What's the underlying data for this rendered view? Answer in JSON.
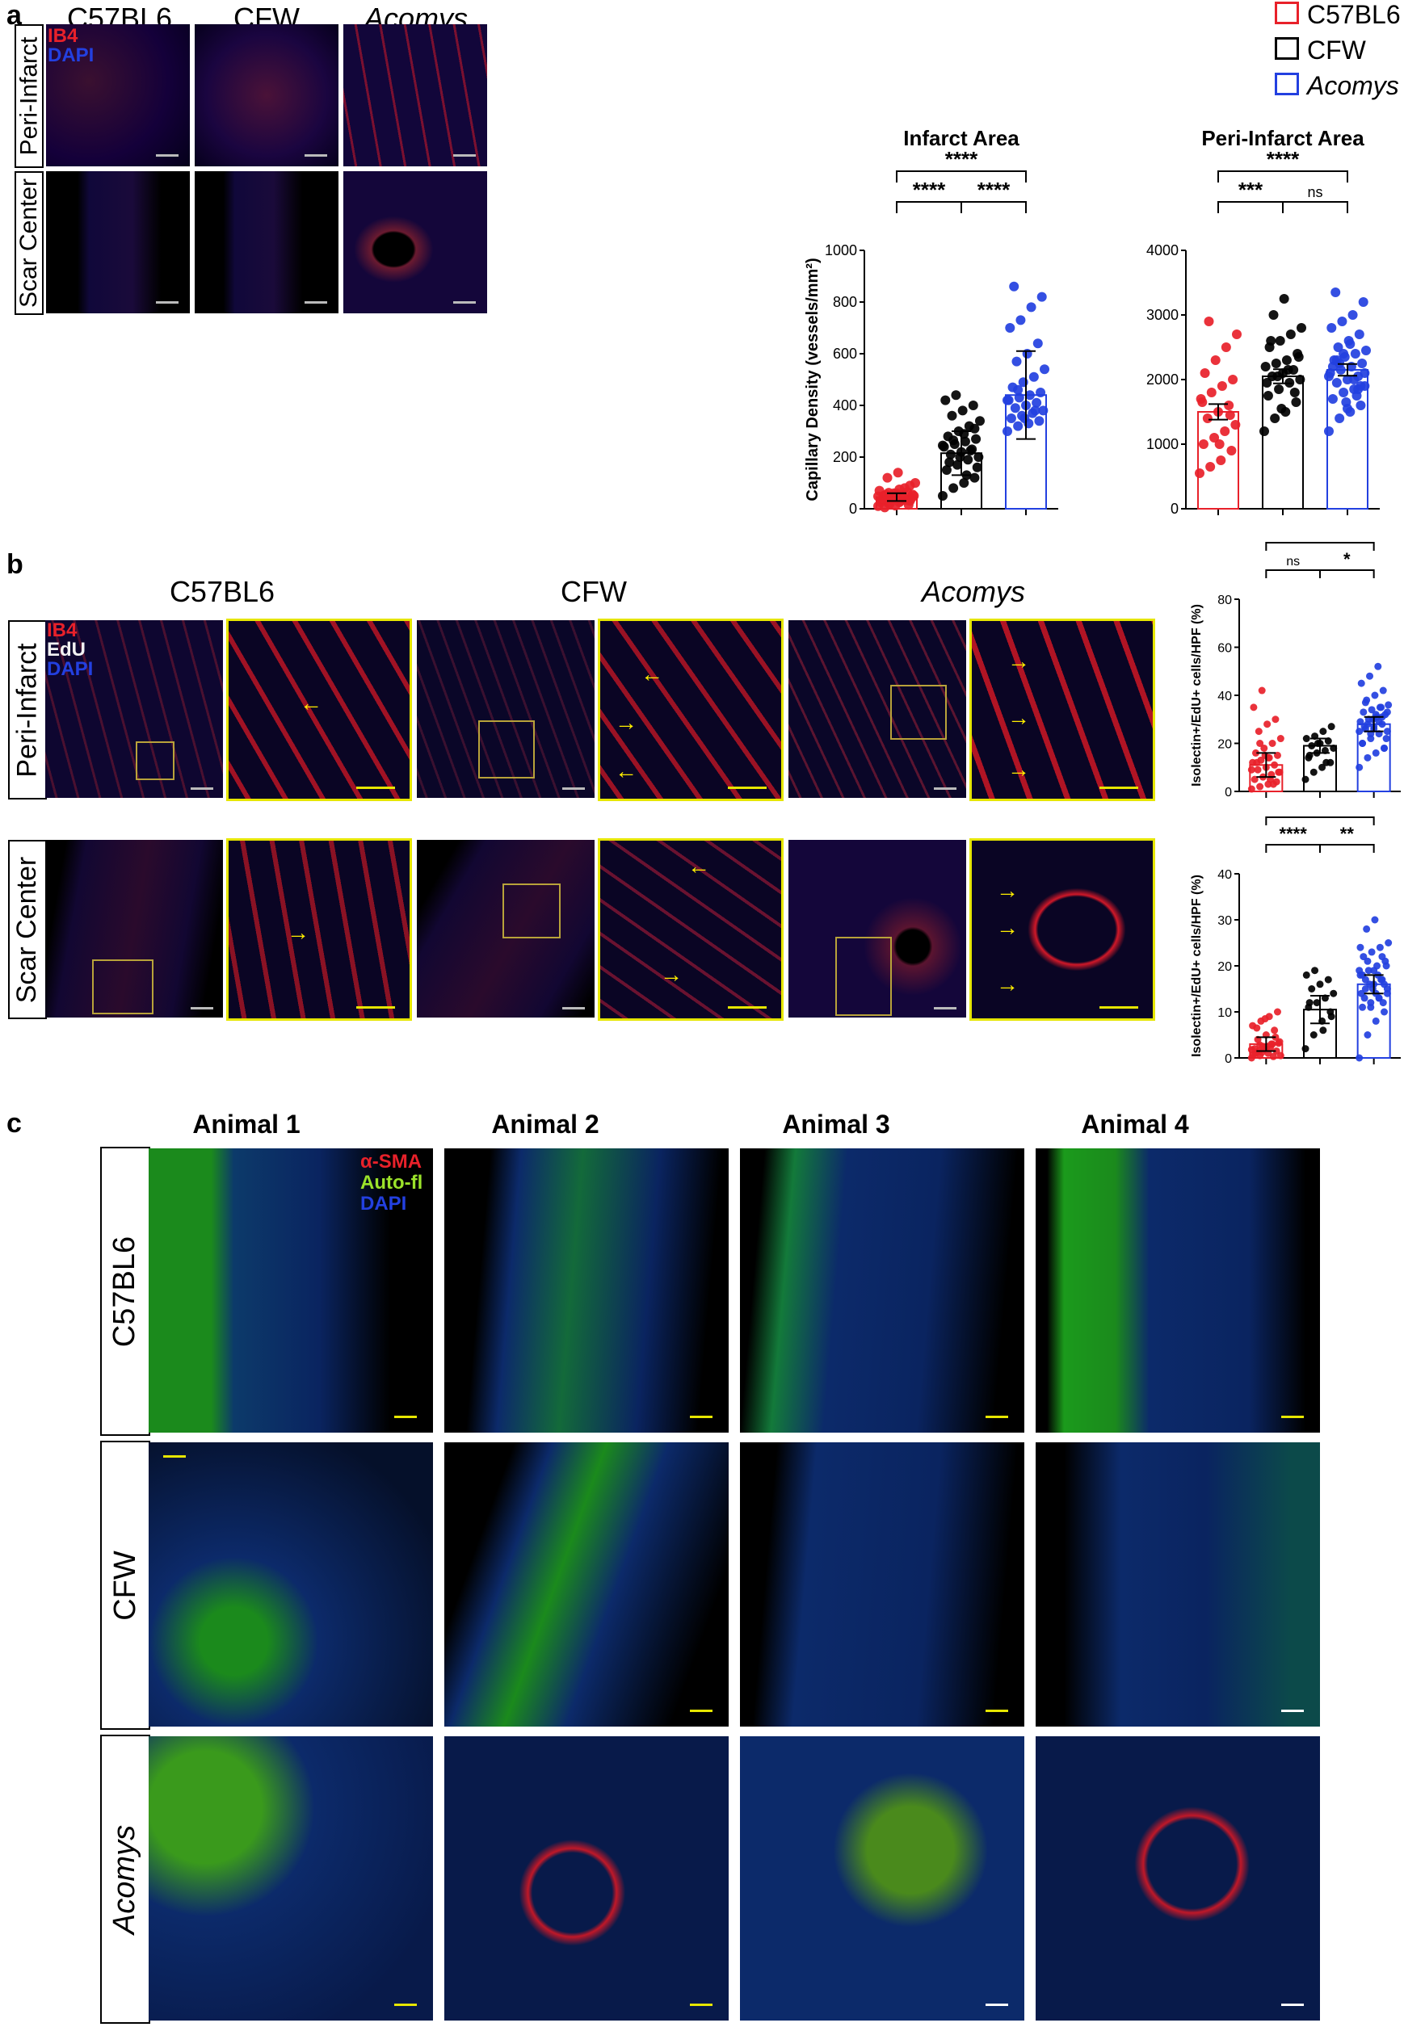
{
  "panels": {
    "a": "a",
    "b": "b",
    "c": "c"
  },
  "panel_a": {
    "columns": [
      "C57BL6",
      "CFW",
      "Acomys"
    ],
    "rows": [
      "Peri-Infarct",
      "Scar Center"
    ],
    "stain_labels": [
      {
        "text": "IB4",
        "color": "#e8212a"
      },
      {
        "text": "DAPI",
        "color": "#2340e0"
      }
    ]
  },
  "legend": [
    {
      "label": "C57BL6",
      "color": "#e8212a",
      "italic": false
    },
    {
      "label": "CFW",
      "color": "#000000",
      "italic": false
    },
    {
      "label": "Acomys",
      "color": "#2340e0",
      "italic": true
    }
  ],
  "panel_b": {
    "columns": [
      "C57BL6",
      "CFW",
      "Acomys"
    ],
    "rows": [
      "Peri-Infarct",
      "Scar Center"
    ],
    "stain_labels": [
      {
        "text": "IB4",
        "color": "#e8212a"
      },
      {
        "text": "EdU",
        "color": "#f2f2f2"
      },
      {
        "text": "DAPI",
        "color": "#2340e0"
      }
    ]
  },
  "panel_c": {
    "columns": [
      "Animal 1",
      "Animal 2",
      "Animal 3",
      "Animal 4"
    ],
    "rows": [
      "C57BL6",
      "CFW",
      "Acomys"
    ],
    "stain_labels": [
      {
        "text": "α-SMA",
        "color": "#e8212a"
      },
      {
        "text": "Auto-fl",
        "color": "#9be22a"
      },
      {
        "text": "DAPI",
        "color": "#2340e0"
      }
    ]
  },
  "colors": {
    "c57": "#e8212a",
    "cfw": "#000000",
    "acomys": "#2340e0",
    "inset_border": "#e6e600",
    "arrow": "#ffee00"
  },
  "chart_data": [
    {
      "type": "bar",
      "title": "Infarct Area",
      "ylabel": "Capillary Density (vessels/mm²)",
      "ylim": [
        0,
        1000
      ],
      "yticks": [
        0,
        200,
        400,
        600,
        800,
        1000
      ],
      "categories": [
        "C57BL6",
        "CFW",
        "Acomys"
      ],
      "values": [
        45,
        215,
        440
      ],
      "errors": [
        15,
        85,
        170
      ],
      "points": [
        [
          10,
          20,
          25,
          30,
          35,
          40,
          45,
          50,
          55,
          60,
          65,
          70,
          20,
          30,
          40,
          50,
          60,
          80,
          100,
          120,
          140,
          15,
          25,
          35,
          45,
          55,
          5,
          12,
          33,
          48,
          62,
          75,
          90
        ],
        [
          50,
          80,
          100,
          120,
          150,
          170,
          190,
          200,
          210,
          220,
          230,
          240,
          250,
          260,
          270,
          280,
          300,
          320,
          340,
          360,
          380,
          400,
          420,
          440,
          130,
          160,
          180,
          200,
          225,
          245,
          265,
          290,
          310
        ],
        [
          300,
          320,
          330,
          340,
          350,
          360,
          370,
          380,
          390,
          400,
          410,
          420,
          430,
          440,
          450,
          470,
          490,
          510,
          540,
          570,
          600,
          640,
          700,
          730,
          780,
          820,
          860,
          350,
          380,
          420,
          460
        ]
      ],
      "annotations": [
        {
          "pair": [
            "C57BL6",
            "CFW"
          ],
          "text": "****"
        },
        {
          "pair": [
            "CFW",
            "Acomys"
          ],
          "text": "****"
        },
        {
          "pair": [
            "C57BL6",
            "Acomys"
          ],
          "text": "****"
        }
      ]
    },
    {
      "type": "bar",
      "title": "Peri-Infarct Area",
      "ylabel": "",
      "ylim": [
        0,
        4000
      ],
      "yticks": [
        0,
        1000,
        2000,
        3000,
        4000
      ],
      "categories": [
        "C57BL6",
        "CFW",
        "Acomys"
      ],
      "values": [
        1500,
        2050,
        2150
      ],
      "errors": [
        120,
        110,
        90
      ],
      "points": [
        [
          550,
          650,
          750,
          900,
          1000,
          1100,
          1200,
          1300,
          1400,
          1500,
          1600,
          1700,
          1800,
          1900,
          2000,
          2100,
          2300,
          2500,
          2700,
          2900,
          1000,
          1450,
          1650
        ],
        [
          1200,
          1400,
          1500,
          1650,
          1750,
          1850,
          1950,
          2000,
          2050,
          2100,
          2150,
          2200,
          2250,
          2300,
          2400,
          2500,
          2600,
          2700,
          2800,
          3000,
          3250,
          1800,
          1950,
          2050,
          2150,
          2350,
          2600,
          1550
        ],
        [
          1200,
          1400,
          1500,
          1600,
          1700,
          1800,
          1850,
          1900,
          1950,
          2000,
          2050,
          2100,
          2150,
          2200,
          2250,
          2300,
          2350,
          2400,
          2450,
          2500,
          2600,
          2700,
          2800,
          2900,
          3000,
          3200,
          3350,
          1650,
          1750,
          2050,
          2250,
          2550,
          1900,
          2200,
          2400,
          2000,
          2100,
          2300,
          1550,
          1850
        ]
      ],
      "annotations": [
        {
          "pair": [
            "C57BL6",
            "CFW"
          ],
          "text": "***"
        },
        {
          "pair": [
            "CFW",
            "Acomys"
          ],
          "text": "ns"
        },
        {
          "pair": [
            "C57BL6",
            "Acomys"
          ],
          "text": "****"
        }
      ]
    },
    {
      "type": "bar",
      "title": "",
      "ylabel": "Isolectin+/EdU+ cells/HPF (%)",
      "ylim": [
        0,
        80
      ],
      "yticks": [
        0,
        20,
        40,
        60,
        80
      ],
      "categories": [
        "C57BL6",
        "CFW",
        "Acomys"
      ],
      "values": [
        11,
        19,
        28
      ],
      "errors": [
        5,
        3,
        3
      ],
      "points": [
        [
          1,
          2,
          3,
          4,
          5,
          6,
          7,
          8,
          9,
          10,
          11,
          12,
          13,
          14,
          15,
          16,
          18,
          20,
          22,
          25,
          28,
          30,
          35,
          42,
          5,
          8,
          12,
          15,
          3,
          9,
          20,
          14
        ],
        [
          5,
          8,
          10,
          12,
          14,
          16,
          17,
          18,
          19,
          20,
          21,
          22,
          23,
          25,
          27,
          15,
          20,
          12
        ],
        [
          10,
          14,
          16,
          18,
          20,
          22,
          24,
          25,
          26,
          27,
          28,
          29,
          30,
          31,
          32,
          33,
          34,
          35,
          36,
          38,
          40,
          42,
          45,
          48,
          52,
          22,
          27,
          30,
          35,
          25,
          28,
          32,
          18,
          20,
          24,
          29,
          33,
          37,
          26,
          31
        ]
      ],
      "annotations": [
        {
          "pair": [
            "C57BL6",
            "CFW"
          ],
          "text": "ns"
        },
        {
          "pair": [
            "CFW",
            "Acomys"
          ],
          "text": "*"
        },
        {
          "pair": [
            "C57BL6",
            "Acomys"
          ],
          "text": "****"
        }
      ]
    },
    {
      "type": "bar",
      "title": "",
      "ylabel": "Isolectin+/EdU+ cells/HPF (%)",
      "ylim": [
        0,
        40
      ],
      "yticks": [
        0,
        10,
        20,
        30,
        40
      ],
      "categories": [
        "C57BL6",
        "CFW",
        "Acomys"
      ],
      "values": [
        3,
        10.5,
        16
      ],
      "errors": [
        1.5,
        3,
        2
      ],
      "points": [
        [
          0,
          0.5,
          1,
          1.5,
          2,
          2.5,
          3,
          3.5,
          4,
          5,
          6,
          7,
          8,
          9,
          10,
          1,
          2,
          3,
          0.5,
          1.5,
          2.5,
          4.5,
          0.8,
          1.2,
          2.2,
          3.2,
          6.5,
          8.5,
          0.3,
          1.8,
          2.8
        ],
        [
          2,
          5,
          8,
          10,
          11,
          12,
          13,
          14,
          15,
          16,
          17,
          18,
          19,
          6,
          9,
          12
        ],
        [
          0,
          5,
          8,
          10,
          11,
          12,
          13,
          14,
          15,
          16,
          17,
          18,
          19,
          20,
          21,
          22,
          23,
          24,
          25,
          28,
          30,
          12,
          14,
          16,
          18,
          20,
          13,
          15,
          17,
          19,
          21,
          14,
          16,
          18,
          11,
          13,
          15,
          17,
          19,
          22,
          24
        ]
      ],
      "annotations": [
        {
          "pair": [
            "C57BL6",
            "CFW"
          ],
          "text": "****"
        },
        {
          "pair": [
            "CFW",
            "Acomys"
          ],
          "text": "**"
        },
        {
          "pair": [
            "C57BL6",
            "Acomys"
          ],
          "text": "****"
        }
      ]
    }
  ]
}
